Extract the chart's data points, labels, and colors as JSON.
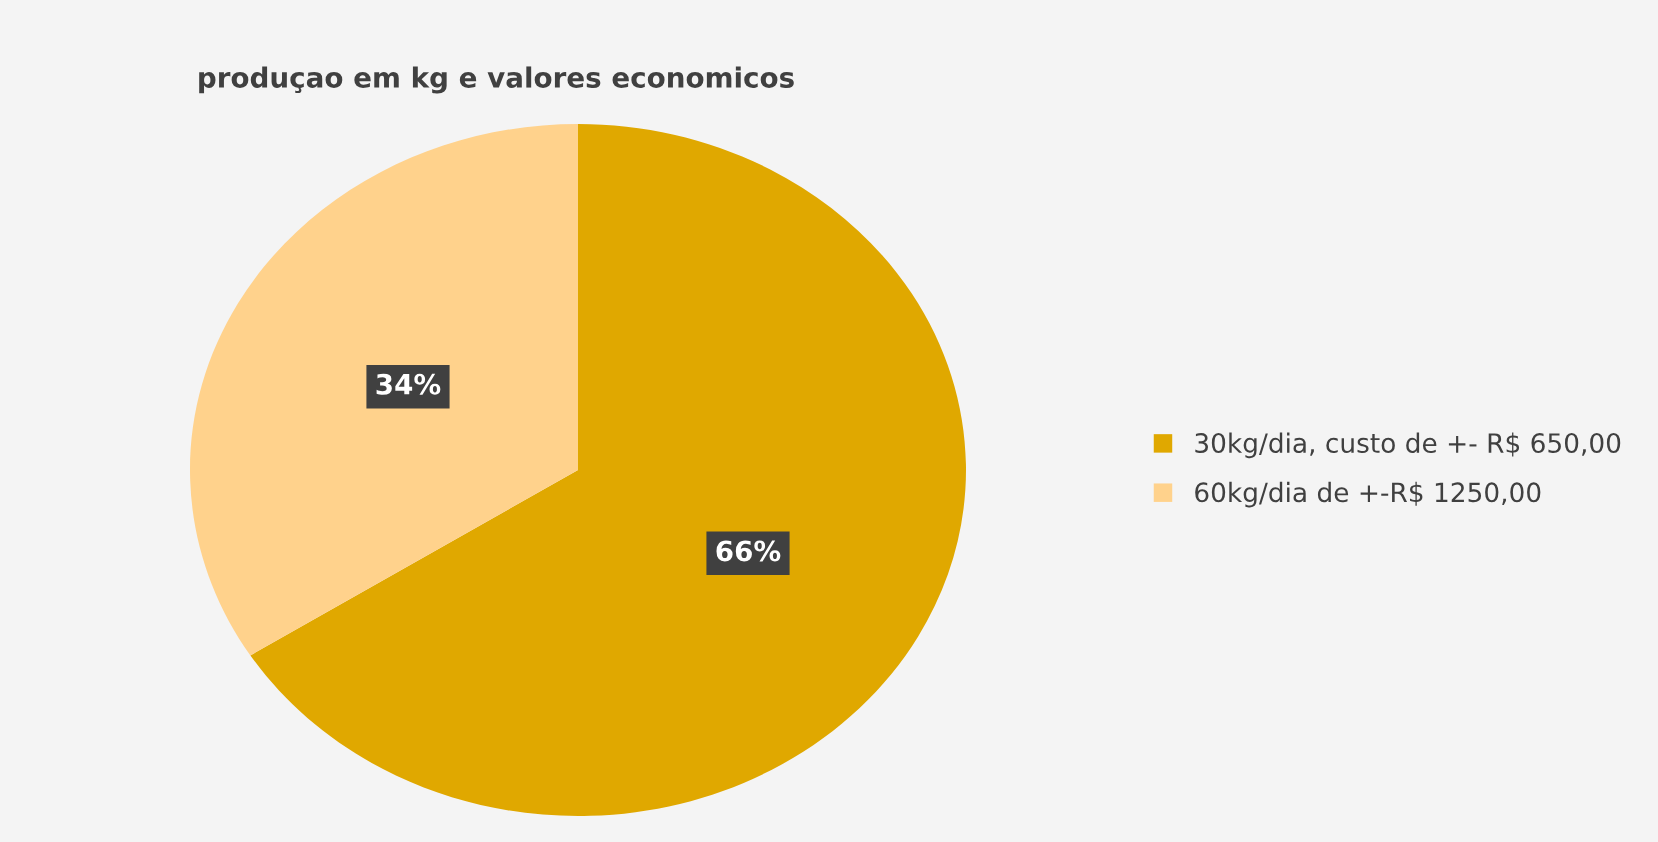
{
  "chart_data": {
    "type": "pie",
    "title": "produçao em kg e valores economicos",
    "categories": [
      "30kg/dia, custo de +- R$ 650,00",
      "60kg/dia de +-R$ 1250,00"
    ],
    "values": [
      66,
      34
    ],
    "colors": [
      "#e0a800",
      "#ffd28c"
    ],
    "value_labels": [
      "66%",
      "34%"
    ],
    "legend": "right"
  }
}
